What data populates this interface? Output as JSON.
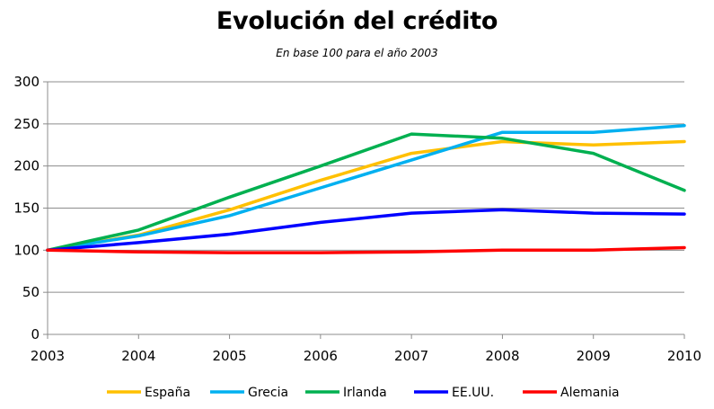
{
  "chart_data": {
    "type": "line",
    "title": "Evolución del crédito",
    "subtitle": "En base 100 para el año 2003",
    "xlabel": "",
    "ylabel": "",
    "x": [
      "2003",
      "2004",
      "2005",
      "2006",
      "2007",
      "2008",
      "2009",
      "2010"
    ],
    "ylim": [
      0,
      300
    ],
    "yticks": [
      0,
      50,
      100,
      150,
      200,
      250,
      300
    ],
    "grid": true,
    "legend_position": "bottom",
    "series": [
      {
        "name": "España",
        "color": "#FFC000",
        "values": [
          100,
          118,
          148,
          183,
          215,
          229,
          225,
          229
        ]
      },
      {
        "name": "Grecia",
        "color": "#00B0F0",
        "values": [
          100,
          117,
          141,
          174,
          207,
          240,
          240,
          248
        ]
      },
      {
        "name": "Irlanda",
        "color": "#00B050",
        "values": [
          100,
          124,
          163,
          200,
          238,
          233,
          215,
          171
        ]
      },
      {
        "name": "EE.UU.",
        "color": "#0000FF",
        "values": [
          100,
          109,
          119,
          133,
          144,
          148,
          144,
          143
        ]
      },
      {
        "name": "Alemania",
        "color": "#FF0000",
        "values": [
          100,
          98,
          97,
          97,
          98,
          100,
          100,
          103
        ]
      }
    ]
  }
}
